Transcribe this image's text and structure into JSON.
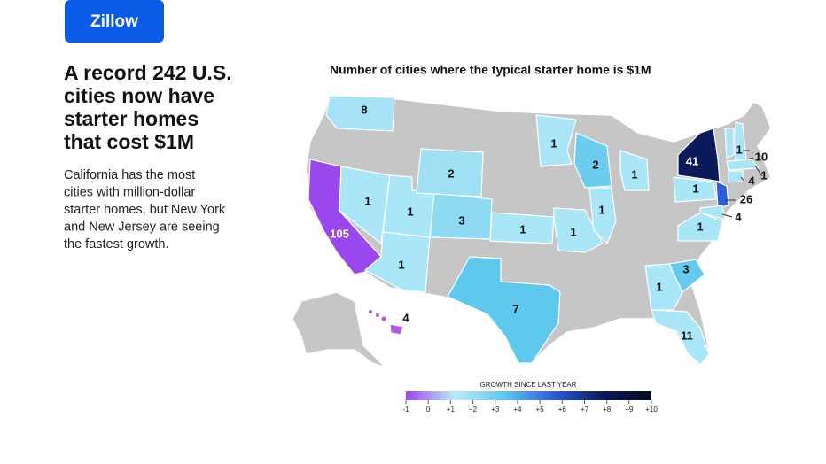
{
  "logo": "Zillow",
  "headline_lines": [
    "A record 242 U.S.",
    "cities now have",
    "starter homes",
    "that cost $1M"
  ],
  "description_lines": [
    "California has the most",
    "cities with million-dollar",
    "starter homes, but New York",
    "and New Jersey are seeing",
    "the fastest growth."
  ],
  "chart_data": {
    "type": "map",
    "title": "Number of cities where the typical starter home is $1M",
    "values": [
      8,
      105,
      1,
      1,
      1,
      3,
      2,
      1,
      1,
      1,
      2,
      1,
      1,
      7,
      4,
      1,
      3,
      11,
      41,
      1,
      26,
      1,
      4,
      1,
      10,
      4,
      1
    ],
    "colors": [
      "#a6e3f7",
      "#9a47ee",
      "#a9e6f8",
      "#a9e6f8",
      "#a9e6f8",
      "#8fdaf3",
      "#9fe0f5",
      "#a9e6f8",
      "#a9e6f8",
      "#a9e6f8",
      "#6dcdef",
      "#a9e6f8",
      "#a9e6f8",
      "#5ec9ee",
      "#b055f0",
      "#a9e6f8",
      "#64cbee",
      "#a9e6f8",
      "#0b1a5a",
      "#a9e6f8",
      "#2b5fd8",
      "#a9e6f8",
      "#a9e6f8",
      "#a9e6f8",
      "#a9e6f8",
      "#a9e6f8",
      "#a9e6f8"
    ],
    "legend": {
      "title": "GROWTH SINCE LAST YEAR",
      "lim": [
        -1,
        10
      ],
      "colors": [
        "#9a47ee",
        "#b9ecfa",
        "#5ec9ee",
        "#2b5fd8",
        "#0b1a5a",
        "#050a20"
      ],
      "ticks": [
        -1,
        0,
        {
          "value": 1,
          "label": "+1"
        },
        {
          "value": 2,
          "label": "+2"
        },
        {
          "value": 3,
          "label": "+3"
        },
        {
          "value": 4,
          "label": "+4"
        },
        {
          "value": 5,
          "label": "+5"
        },
        {
          "value": 6,
          "label": "+6"
        },
        {
          "value": 7,
          "label": "+7"
        },
        {
          "value": 8,
          "label": "+8"
        },
        {
          "value": 9,
          "label": "+9"
        },
        {
          "value": 10,
          "label": "+10"
        }
      ]
    }
  }
}
